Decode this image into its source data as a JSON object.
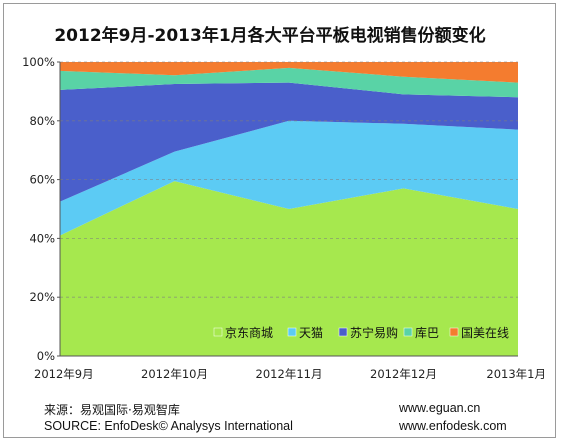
{
  "chart_data": {
    "type": "area",
    "stacked": true,
    "title": "2012年9月-2013年1月各大平台平板电视销售份额变化",
    "categories": [
      "2012年9月",
      "2012年10月",
      "2012年11月",
      "2012年12月",
      "2013年1月"
    ],
    "yticks": [
      "0%",
      "20%",
      "40%",
      "60%",
      "80%",
      "100%"
    ],
    "ylim": [
      0,
      100
    ],
    "grid": "horizontal dashed",
    "legend_position": "bottom-right inside",
    "series": [
      {
        "name": "京东商城",
        "color": "#a6e84e",
        "values": [
          41,
          59.5,
          50,
          57,
          50
        ]
      },
      {
        "name": "天猫",
        "color": "#5ccbf4",
        "values": [
          11.5,
          10,
          30,
          22,
          27
        ]
      },
      {
        "name": "苏宁易购",
        "color": "#4a5fcb",
        "values": [
          38,
          23,
          13,
          10,
          11
        ]
      },
      {
        "name": "库巴",
        "color": "#59d3a6",
        "values": [
          6.5,
          3,
          5,
          6,
          5
        ]
      },
      {
        "name": "国美在线",
        "color": "#f47c2f",
        "values": [
          3,
          4.5,
          2,
          5,
          7
        ]
      }
    ]
  },
  "footer": {
    "source_cn": "来源：易观国际·易观智库",
    "source_en": "SOURCE: EnfoDesk© Analysys International",
    "url1": "www.eguan.cn",
    "url2": "www.enfodesk.com"
  }
}
